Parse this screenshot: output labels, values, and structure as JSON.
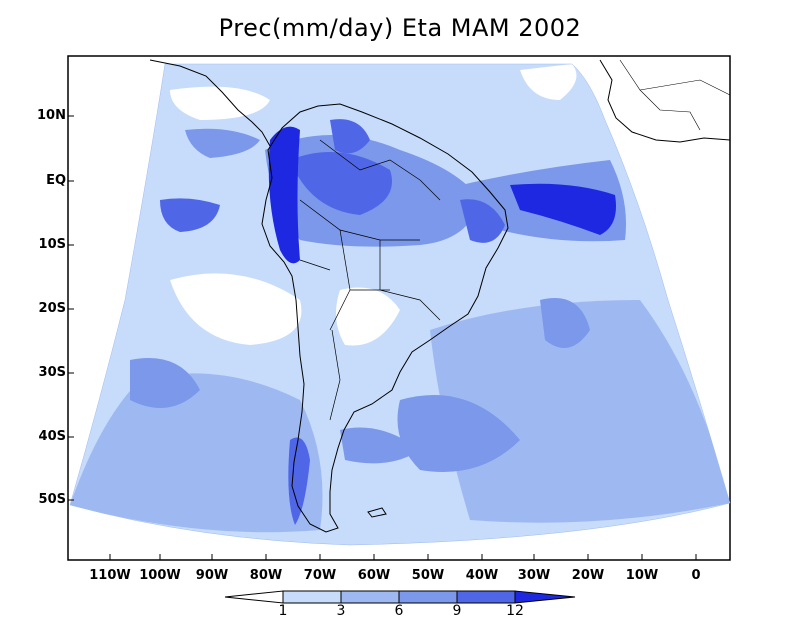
{
  "title": "Prec(mm/day) Eta MAM 2002",
  "lat_labels": [
    "10N",
    "EQ",
    "10S",
    "20S",
    "30S",
    "40S",
    "50S"
  ],
  "lon_labels": [
    "110W",
    "100W",
    "90W",
    "80W",
    "70W",
    "60W",
    "50W",
    "40W",
    "30W",
    "20W",
    "10W",
    "0"
  ],
  "colorbar": {
    "levels": [
      "1",
      "3",
      "6",
      "9",
      "12"
    ],
    "colors": [
      "#ffffff",
      "#c6dcfa",
      "#9eb9f2",
      "#7b98ea",
      "#4f66e6",
      "#1e28e0"
    ]
  }
}
